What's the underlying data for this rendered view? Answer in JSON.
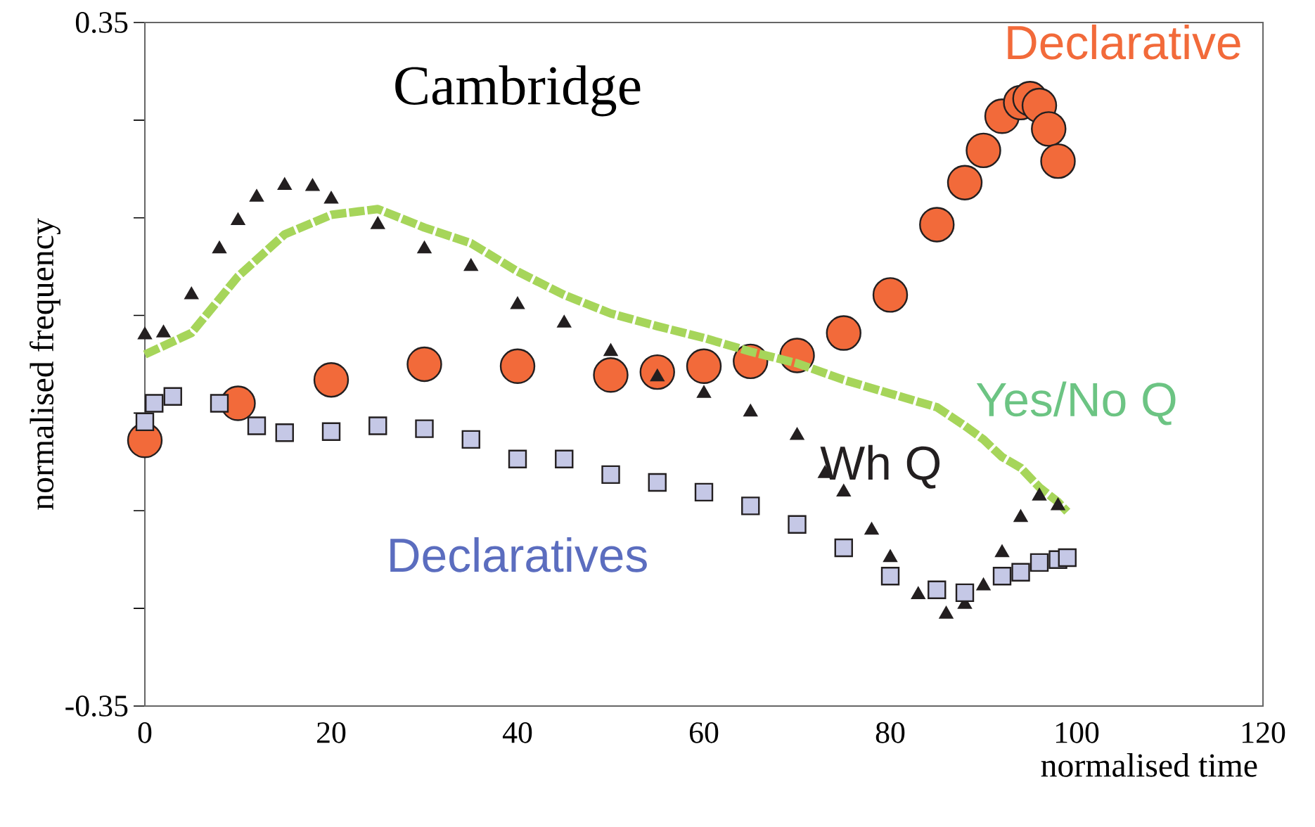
{
  "chart_data": {
    "type": "scatter",
    "title": "Cambridge",
    "xlabel": "normalised time",
    "ylabel": "normalised frequency",
    "xlim": [
      0,
      120
    ],
    "xticks": [
      0,
      20,
      40,
      60,
      80,
      100,
      120
    ],
    "ylim": [
      -0.35,
      0.35
    ],
    "yticks": [
      -0.35,
      {
        "value": -0.25,
        "label": null
      },
      {
        "value": -0.15,
        "label": null
      },
      {
        "value": -0.05,
        "label": null
      },
      {
        "value": 0.05,
        "label": null
      },
      {
        "value": 0.15,
        "label": null
      },
      {
        "value": 0.25,
        "label": null
      },
      0.35
    ],
    "grid": false,
    "legend": false,
    "series": [
      {
        "name": "Declarative",
        "color": "#f26a3a",
        "marker": "circle",
        "x": [
          0,
          10,
          20,
          30,
          40,
          50,
          55,
          60,
          65,
          70,
          75,
          80,
          85,
          88,
          90,
          92,
          94,
          95,
          96,
          97,
          98
        ],
        "values": [
          -0.078,
          -0.04,
          -0.016,
          0.0,
          -0.002,
          -0.011,
          -0.008,
          -0.002,
          0.003,
          0.009,
          0.032,
          0.071,
          0.143,
          0.186,
          0.219,
          0.254,
          0.268,
          0.272,
          0.265,
          0.241,
          0.208
        ]
      },
      {
        "name": "Yes/No Q",
        "color": "#a6d55a",
        "type": "line",
        "line_style": "dashed",
        "marker": "none",
        "x": [
          0,
          5,
          10,
          15,
          20,
          25,
          30,
          35,
          40,
          45,
          50,
          55,
          60,
          65,
          70,
          75,
          80,
          85,
          88,
          90,
          92,
          94,
          96,
          98,
          99
        ],
        "values": [
          0.01,
          0.032,
          0.09,
          0.133,
          0.153,
          0.159,
          0.14,
          0.124,
          0.095,
          0.071,
          0.052,
          0.039,
          0.027,
          0.013,
          0.001,
          -0.016,
          -0.03,
          -0.044,
          -0.063,
          -0.077,
          -0.095,
          -0.106,
          -0.126,
          -0.141,
          -0.151
        ]
      },
      {
        "name": "Wh Q",
        "color": "#231f20",
        "marker": "triangle",
        "x": [
          0,
          2,
          5,
          8,
          10,
          12,
          15,
          18,
          20,
          25,
          30,
          35,
          40,
          45,
          50,
          55,
          60,
          65,
          70,
          73,
          75,
          78,
          80,
          83,
          86,
          88,
          90,
          92,
          94,
          96,
          98
        ],
        "values": [
          0.03,
          0.032,
          0.071,
          0.118,
          0.147,
          0.171,
          0.183,
          0.182,
          0.169,
          0.143,
          0.118,
          0.1,
          0.061,
          0.042,
          0.013,
          -0.013,
          -0.03,
          -0.049,
          -0.073,
          -0.112,
          -0.131,
          -0.17,
          -0.198,
          -0.236,
          -0.256,
          -0.246,
          -0.227,
          -0.193,
          -0.157,
          -0.135,
          -0.145
        ]
      },
      {
        "name": "Declaratives",
        "color": "#c5c8e6",
        "marker": "square",
        "x": [
          0,
          1,
          3,
          8,
          12,
          15,
          20,
          25,
          30,
          35,
          40,
          45,
          50,
          55,
          60,
          65,
          70,
          75,
          80,
          85,
          88,
          92,
          94,
          96,
          98,
          99
        ],
        "values": [
          -0.059,
          -0.04,
          -0.033,
          -0.04,
          -0.063,
          -0.07,
          -0.069,
          -0.063,
          -0.066,
          -0.077,
          -0.097,
          -0.097,
          -0.113,
          -0.121,
          -0.131,
          -0.145,
          -0.164,
          -0.188,
          -0.217,
          -0.231,
          -0.234,
          -0.217,
          -0.213,
          -0.203,
          -0.2,
          -0.198
        ]
      }
    ]
  }
}
